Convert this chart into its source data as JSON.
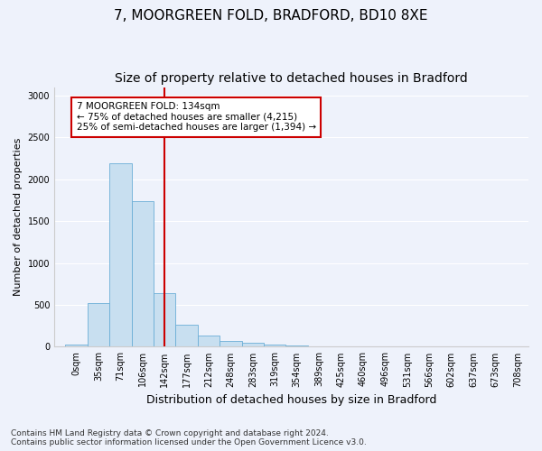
{
  "title_line1": "7, MOORGREEN FOLD, BRADFORD, BD10 8XE",
  "title_line2": "Size of property relative to detached houses in Bradford",
  "xlabel": "Distribution of detached houses by size in Bradford",
  "ylabel": "Number of detached properties",
  "footnote": "Contains HM Land Registry data © Crown copyright and database right 2024.\nContains public sector information licensed under the Open Government Licence v3.0.",
  "bar_labels": [
    "0sqm",
    "35sqm",
    "71sqm",
    "106sqm",
    "142sqm",
    "177sqm",
    "212sqm",
    "248sqm",
    "283sqm",
    "319sqm",
    "354sqm",
    "389sqm",
    "425sqm",
    "460sqm",
    "496sqm",
    "531sqm",
    "566sqm",
    "602sqm",
    "637sqm",
    "673sqm",
    "708sqm"
  ],
  "bar_values": [
    30,
    520,
    2190,
    1740,
    640,
    265,
    130,
    70,
    45,
    30,
    20,
    5,
    2,
    0,
    0,
    0,
    0,
    0,
    0,
    0,
    0
  ],
  "bar_color": "#c8dff0",
  "bar_edge_color": "#6baed6",
  "vline_x_index": 4,
  "vline_color": "#cc0000",
  "annotation_text": "7 MOORGREEN FOLD: 134sqm\n← 75% of detached houses are smaller (4,215)\n25% of semi-detached houses are larger (1,394) →",
  "annotation_box_color": "white",
  "annotation_box_edge": "#cc0000",
  "ylim": [
    0,
    3100
  ],
  "yticks": [
    0,
    500,
    1000,
    1500,
    2000,
    2500,
    3000
  ],
  "background_color": "#eef2fb",
  "plot_background": "#eef2fb",
  "grid_color": "#ffffff",
  "title_fontsize": 11,
  "subtitle_fontsize": 10,
  "axis_label_fontsize": 9,
  "ylabel_fontsize": 8,
  "tick_fontsize": 7,
  "footnote_fontsize": 6.5
}
